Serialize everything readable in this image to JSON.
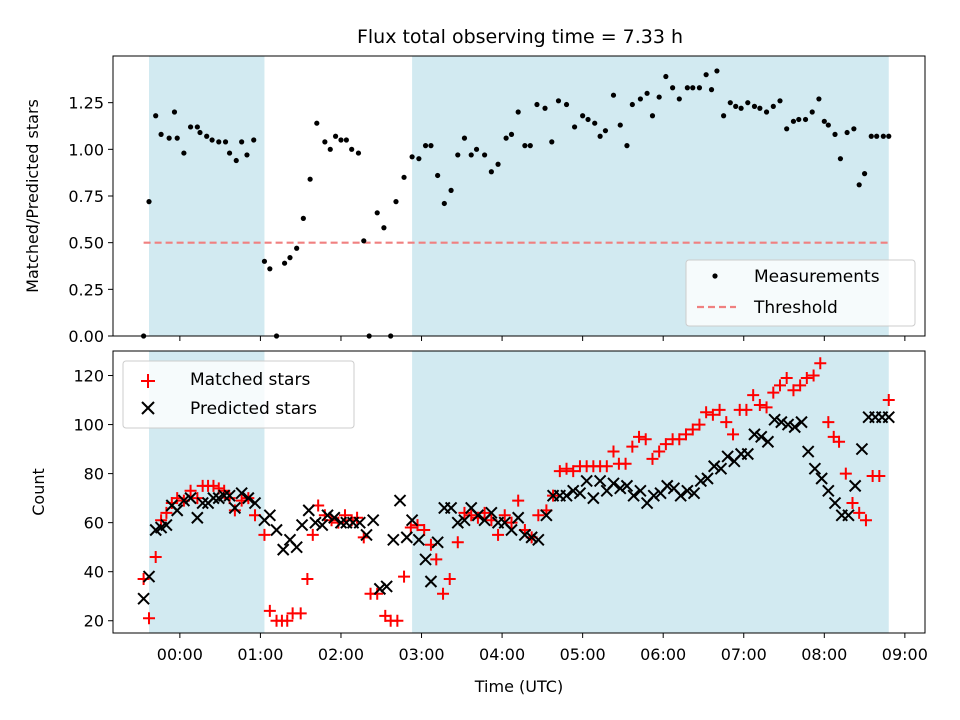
{
  "title": "Flux total observing time = 7.33 h",
  "colors": {
    "background": "#ffffff",
    "span": "#add8e6",
    "measurement": "#000000",
    "threshold": "#f08080",
    "matched": "#ff0000",
    "predicted": "#000000"
  },
  "chart_data": [
    {
      "type": "scatter",
      "title": "Flux total observing time = 7.33 h",
      "xlabel": "",
      "ylabel": "Matched/Predicted stars",
      "xlim": [
        -0.83,
        9.25
      ],
      "ylim": [
        0,
        1.5
      ],
      "yticks": [
        0,
        0.25,
        0.5,
        0.75,
        1.0,
        1.25
      ],
      "ytick_labels": [
        "0.00",
        "0.25",
        "0.50",
        "0.75",
        "1.00",
        "1.25"
      ],
      "legend": {
        "position": "lower-right",
        "entries": [
          "Measurements",
          "Threshold"
        ]
      },
      "shaded_spans": [
        [
          -0.383,
          1.05
        ],
        [
          2.883,
          8.8
        ]
      ],
      "threshold": {
        "name": "Threshold",
        "value": 0.5,
        "x_range": [
          -0.45,
          8.8
        ]
      },
      "series": [
        {
          "name": "Measurements",
          "x": [
            -0.45,
            -0.383,
            -0.3,
            -0.233,
            -0.133,
            -0.067,
            -0.033,
            0.05,
            0.133,
            0.217,
            0.25,
            0.333,
            0.4,
            0.483,
            0.567,
            0.617,
            0.7,
            0.767,
            0.833,
            0.917,
            1.05,
            1.117,
            1.2,
            1.3,
            1.367,
            1.45,
            1.533,
            1.617,
            1.7,
            1.8,
            1.867,
            1.933,
            2.0,
            2.067,
            2.133,
            2.217,
            2.283,
            2.35,
            2.45,
            2.533,
            2.617,
            2.683,
            2.783,
            2.883,
            2.967,
            3.05,
            3.117,
            3.2,
            3.283,
            3.367,
            3.45,
            3.533,
            3.617,
            3.683,
            3.783,
            3.867,
            3.95,
            4.05,
            4.117,
            4.2,
            4.283,
            4.35,
            4.433,
            4.533,
            4.617,
            4.7,
            4.8,
            4.9,
            5.0,
            5.067,
            5.15,
            5.217,
            5.283,
            5.383,
            5.467,
            5.55,
            5.617,
            5.717,
            5.8,
            5.867,
            5.95,
            6.033,
            6.117,
            6.2,
            6.3,
            6.367,
            6.45,
            6.533,
            6.6,
            6.667,
            6.75,
            6.833,
            6.9,
            6.967,
            7.05,
            7.133,
            7.2,
            7.283,
            7.367,
            7.45,
            7.533,
            7.617,
            7.683,
            7.767,
            7.85,
            7.933,
            8.0,
            8.05,
            8.133,
            8.2,
            8.283,
            8.367,
            8.433,
            8.5,
            8.583,
            8.65,
            8.733,
            8.8
          ],
          "values": [
            0.0,
            0.72,
            1.18,
            1.08,
            1.06,
            1.2,
            1.06,
            0.98,
            1.12,
            1.12,
            1.09,
            1.07,
            1.05,
            1.04,
            1.04,
            0.98,
            0.94,
            1.04,
            0.97,
            1.05,
            0.4,
            0.36,
            0.0,
            0.39,
            0.42,
            0.47,
            0.63,
            0.84,
            1.14,
            1.04,
            1.0,
            1.07,
            1.05,
            1.05,
            1.0,
            0.98,
            0.51,
            0.0,
            0.66,
            0.58,
            0.0,
            0.72,
            0.85,
            0.96,
            0.95,
            1.02,
            1.02,
            0.86,
            0.71,
            0.78,
            0.97,
            1.06,
            0.97,
            1.0,
            0.97,
            0.88,
            0.92,
            1.06,
            1.08,
            1.2,
            1.02,
            1.02,
            1.24,
            1.22,
            1.04,
            1.26,
            1.24,
            1.12,
            1.18,
            1.16,
            1.14,
            1.07,
            1.1,
            1.29,
            1.13,
            1.02,
            1.24,
            1.27,
            1.3,
            1.18,
            1.28,
            1.39,
            1.33,
            1.27,
            1.33,
            1.33,
            1.33,
            1.4,
            1.32,
            1.42,
            1.18,
            1.25,
            1.23,
            1.22,
            1.25,
            1.23,
            1.22,
            1.2,
            1.23,
            1.26,
            1.11,
            1.15,
            1.16,
            1.16,
            1.2,
            1.27,
            1.15,
            1.13,
            1.08,
            0.95,
            1.09,
            1.11,
            0.81,
            0.87,
            1.07,
            1.07,
            1.07,
            1.07
          ]
        }
      ]
    },
    {
      "type": "scatter",
      "title": "",
      "xlabel": "Time (UTC)",
      "ylabel": "Count",
      "xlim": [
        -0.83,
        9.25
      ],
      "ylim": [
        15,
        130
      ],
      "xticks": [
        0,
        1,
        2,
        3,
        4,
        5,
        6,
        7,
        8,
        9
      ],
      "xtick_labels": [
        "00:00",
        "01:00",
        "02:00",
        "03:00",
        "04:00",
        "05:00",
        "06:00",
        "07:00",
        "08:00",
        "09:00"
      ],
      "yticks": [
        20,
        40,
        60,
        80,
        100,
        120
      ],
      "ytick_labels": [
        "20",
        "40",
        "60",
        "80",
        "100",
        "120"
      ],
      "legend": {
        "position": "top-left",
        "entries": [
          "Matched stars",
          "Predicted stars"
        ]
      },
      "shaded_spans": [
        [
          -0.383,
          1.05
        ],
        [
          2.883,
          8.8
        ]
      ],
      "series": [
        {
          "name": "Matched stars",
          "marker": "+",
          "x": [
            -0.45,
            -0.383,
            -0.3,
            -0.233,
            -0.167,
            -0.1,
            -0.033,
            0.05,
            0.133,
            0.217,
            0.283,
            0.35,
            0.417,
            0.483,
            0.55,
            0.617,
            0.683,
            0.767,
            0.85,
            0.933,
            1.05,
            1.117,
            1.2,
            1.267,
            1.333,
            1.4,
            1.5,
            1.583,
            1.65,
            1.717,
            1.8,
            1.883,
            1.967,
            2.05,
            2.133,
            2.2,
            2.283,
            2.367,
            2.45,
            2.55,
            2.617,
            2.7,
            2.783,
            2.867,
            2.95,
            3.033,
            3.117,
            3.183,
            3.267,
            3.35,
            3.45,
            3.533,
            3.617,
            3.7,
            3.783,
            3.867,
            3.95,
            4.033,
            4.117,
            4.2,
            4.283,
            4.367,
            4.45,
            4.55,
            4.633,
            4.717,
            4.8,
            4.883,
            4.967,
            5.05,
            5.133,
            5.217,
            5.3,
            5.383,
            5.45,
            5.533,
            5.617,
            5.7,
            5.783,
            5.867,
            5.95,
            6.033,
            6.117,
            6.2,
            6.283,
            6.367,
            6.45,
            6.533,
            6.617,
            6.7,
            6.783,
            6.867,
            6.95,
            7.033,
            7.117,
            7.2,
            7.283,
            7.367,
            7.45,
            7.533,
            7.617,
            7.7,
            7.783,
            7.867,
            7.95,
            8.05,
            8.117,
            8.183,
            8.267,
            8.35,
            8.433,
            8.517,
            8.6,
            8.683,
            8.8
          ],
          "values": [
            37,
            21,
            46,
            61,
            64,
            68,
            70,
            69,
            73,
            70,
            75,
            75,
            75,
            74,
            73,
            70,
            65,
            69,
            70,
            63,
            55,
            24,
            20,
            20,
            20,
            23,
            23,
            37,
            55,
            67,
            63,
            61,
            60,
            63,
            61,
            62,
            54,
            31,
            31,
            22,
            20,
            20,
            38,
            58,
            59,
            57,
            51,
            45,
            31,
            37,
            52,
            64,
            63,
            62,
            64,
            61,
            55,
            63,
            60,
            69,
            57,
            54,
            63,
            65,
            71,
            81,
            82,
            81,
            83,
            83,
            83,
            83,
            83,
            89,
            84,
            84,
            91,
            95,
            94,
            86,
            89,
            92,
            94,
            94,
            96,
            98,
            100,
            105,
            104,
            106,
            101,
            96,
            106,
            106,
            112,
            108,
            107,
            113,
            116,
            119,
            114,
            116,
            119,
            120,
            125,
            101,
            95,
            93,
            80,
            68,
            64,
            61,
            79,
            79,
            110
          ]
        },
        {
          "name": "Predicted stars",
          "marker": "x",
          "x": [
            -0.45,
            -0.383,
            -0.3,
            -0.233,
            -0.167,
            -0.1,
            -0.033,
            0.05,
            0.133,
            0.217,
            0.283,
            0.35,
            0.417,
            0.483,
            0.55,
            0.617,
            0.683,
            0.767,
            0.85,
            0.933,
            1.05,
            1.117,
            1.2,
            1.283,
            1.367,
            1.45,
            1.517,
            1.6,
            1.683,
            1.767,
            1.833,
            1.917,
            2.0,
            2.067,
            2.15,
            2.233,
            2.317,
            2.4,
            2.483,
            2.567,
            2.65,
            2.733,
            2.817,
            2.883,
            2.967,
            3.05,
            3.117,
            3.2,
            3.283,
            3.367,
            3.45,
            3.533,
            3.617,
            3.7,
            3.783,
            3.867,
            3.95,
            4.033,
            4.117,
            4.2,
            4.283,
            4.367,
            4.45,
            4.55,
            4.633,
            4.717,
            4.8,
            4.883,
            4.967,
            5.05,
            5.133,
            5.217,
            5.3,
            5.383,
            5.467,
            5.55,
            5.633,
            5.717,
            5.8,
            5.883,
            5.967,
            6.05,
            6.133,
            6.217,
            6.3,
            6.383,
            6.467,
            6.55,
            6.633,
            6.717,
            6.8,
            6.883,
            6.967,
            7.05,
            7.133,
            7.217,
            7.3,
            7.383,
            7.467,
            7.55,
            7.633,
            7.717,
            7.8,
            7.883,
            7.967,
            8.05,
            8.133,
            8.217,
            8.3,
            8.383,
            8.467,
            8.55,
            8.633,
            8.717,
            8.8
          ],
          "values": [
            29,
            38,
            57,
            58,
            59,
            67,
            65,
            69,
            70,
            62,
            68,
            68,
            70,
            70,
            71,
            71,
            66,
            72,
            70,
            68,
            61,
            63,
            57,
            49,
            53,
            50,
            59,
            65,
            60,
            59,
            63,
            62,
            60,
            60,
            60,
            60,
            55,
            61,
            33,
            34,
            53,
            69,
            54,
            61,
            53,
            45,
            36,
            52,
            66,
            66,
            60,
            61,
            66,
            63,
            61,
            64,
            60,
            60,
            57,
            62,
            55,
            54,
            53,
            63,
            71,
            71,
            71,
            73,
            72,
            77,
            70,
            77,
            73,
            76,
            74,
            75,
            71,
            73,
            68,
            71,
            72,
            75,
            74,
            71,
            73,
            72,
            77,
            78,
            83,
            82,
            87,
            85,
            88,
            88,
            96,
            95,
            93,
            102,
            101,
            100,
            99,
            101,
            89,
            82,
            78,
            73,
            68,
            63,
            63,
            75,
            90,
            103,
            103,
            103,
            103
          ]
        }
      ]
    }
  ]
}
